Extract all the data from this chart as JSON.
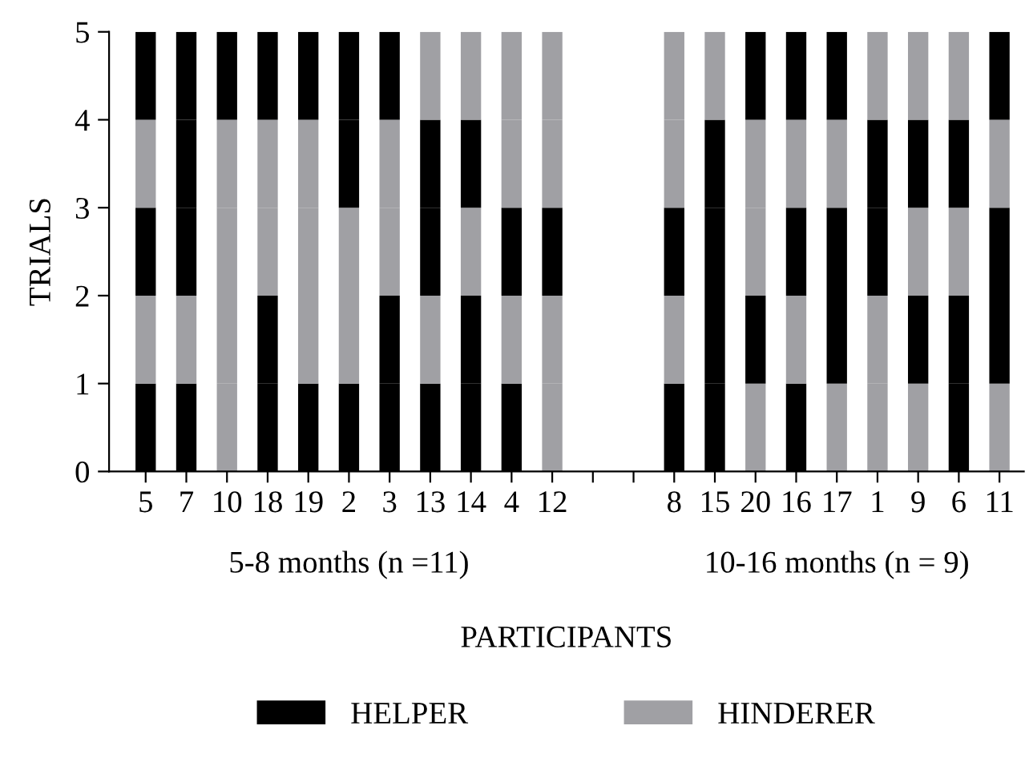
{
  "chart_data": {
    "type": "bar",
    "stacked": true,
    "ylabel": "TRIALS",
    "xlabel": "PARTICIPANTS",
    "categories": [
      "5",
      "7",
      "10",
      "18",
      "19",
      "2",
      "3",
      "13",
      "14",
      "4",
      "12",
      null,
      null,
      "8",
      "15",
      "20",
      "16",
      "17",
      "1",
      "9",
      "6",
      "11"
    ],
    "series": [
      {
        "name": "HELPER",
        "color": "#000000",
        "values": [
          1,
          1,
          null,
          1,
          1,
          1,
          1,
          1,
          1,
          1,
          null,
          null,
          null,
          1,
          1,
          null,
          1,
          null,
          null,
          null,
          1,
          null
        ]
      },
      {
        "name": "HINDERER",
        "color": "#a0a0a4",
        "values": [
          null,
          null,
          1,
          null,
          null,
          null,
          null,
          null,
          null,
          null,
          1,
          null,
          null,
          null,
          null,
          1,
          null,
          1,
          1,
          1,
          null,
          1
        ]
      },
      {
        "color": "#000000",
        "values": [
          null,
          null,
          null,
          1,
          null,
          null,
          1,
          null,
          1,
          null,
          null,
          null,
          null,
          null,
          1,
          1,
          null,
          1,
          null,
          1,
          1,
          1
        ]
      },
      {
        "color": "#a0a0a4",
        "values": [
          1,
          1,
          1,
          null,
          1,
          1,
          null,
          1,
          null,
          1,
          1,
          null,
          null,
          1,
          null,
          null,
          1,
          null,
          1,
          null,
          null,
          null
        ]
      },
      {
        "color": "#000000",
        "values": [
          1,
          1,
          null,
          null,
          null,
          null,
          null,
          1,
          null,
          1,
          1,
          null,
          null,
          1,
          1,
          null,
          1,
          1,
          1,
          null,
          null,
          1
        ]
      },
      {
        "color": "#a0a0a4",
        "values": [
          null,
          null,
          1,
          1,
          1,
          1,
          1,
          null,
          1,
          null,
          null,
          null,
          null,
          null,
          null,
          1,
          null,
          null,
          null,
          1,
          1,
          null
        ]
      },
      {
        "color": "#000000",
        "values": [
          null,
          1,
          null,
          null,
          null,
          1,
          null,
          1,
          1,
          null,
          null,
          null,
          null,
          null,
          1,
          null,
          null,
          null,
          1,
          1,
          1,
          null
        ]
      },
      {
        "color": "#a0a0a4",
        "values": [
          1,
          null,
          1,
          1,
          1,
          null,
          1,
          null,
          null,
          1,
          1,
          null,
          null,
          1,
          null,
          1,
          1,
          1,
          null,
          null,
          null,
          1
        ]
      },
      {
        "color": "#000000",
        "values": [
          1,
          1,
          1,
          1,
          1,
          1,
          1,
          null,
          null,
          null,
          null,
          null,
          null,
          null,
          null,
          1,
          1,
          1,
          null,
          null,
          null,
          1
        ]
      },
      {
        "color": "#a0a0a4",
        "values": [
          null,
          null,
          null,
          null,
          null,
          null,
          null,
          1,
          1,
          1,
          1,
          null,
          null,
          1,
          1,
          null,
          null,
          null,
          1,
          1,
          1,
          null
        ]
      }
    ],
    "ylim": [
      0,
      5
    ],
    "yticks": [
      0,
      1,
      2,
      3,
      4,
      5
    ],
    "grid": false,
    "legend": "bottom",
    "annotations": [
      "5-8 months (n =11)",
      "10-16 months (n = 9)"
    ]
  }
}
